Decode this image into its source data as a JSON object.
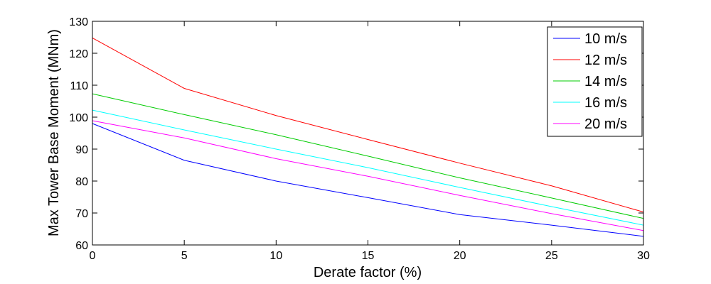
{
  "chart_data": {
    "type": "line",
    "title": "",
    "xlabel": "Derate factor (%)",
    "ylabel": "Max Tower Base Moment (MNm)",
    "xlim": [
      0,
      30
    ],
    "ylim": [
      60,
      130
    ],
    "xticks": [
      0,
      5,
      10,
      15,
      20,
      25,
      30
    ],
    "yticks": [
      60,
      70,
      80,
      90,
      100,
      110,
      120,
      130
    ],
    "grid": false,
    "legend_position": "top-right",
    "x": [
      0,
      5,
      10,
      15,
      20,
      25,
      30
    ],
    "series": [
      {
        "name": "10 m/s",
        "color": "#0000ff",
        "values": [
          98.0,
          86.5,
          80.0,
          74.8,
          69.5,
          66.2,
          62.7
        ]
      },
      {
        "name": "12 m/s",
        "color": "#ff0000",
        "values": [
          124.8,
          109.0,
          100.5,
          93.0,
          85.6,
          78.5,
          70.3
        ]
      },
      {
        "name": "14 m/s",
        "color": "#00cc00",
        "values": [
          107.3,
          100.8,
          94.5,
          87.8,
          81.0,
          74.7,
          68.3
        ]
      },
      {
        "name": "16 m/s",
        "color": "#00ffff",
        "values": [
          102.2,
          96.0,
          90.0,
          84.2,
          78.0,
          72.0,
          66.2
        ]
      },
      {
        "name": "20 m/s",
        "color": "#ff00ff",
        "values": [
          98.9,
          93.5,
          87.0,
          81.5,
          75.5,
          69.8,
          64.5
        ]
      }
    ]
  }
}
